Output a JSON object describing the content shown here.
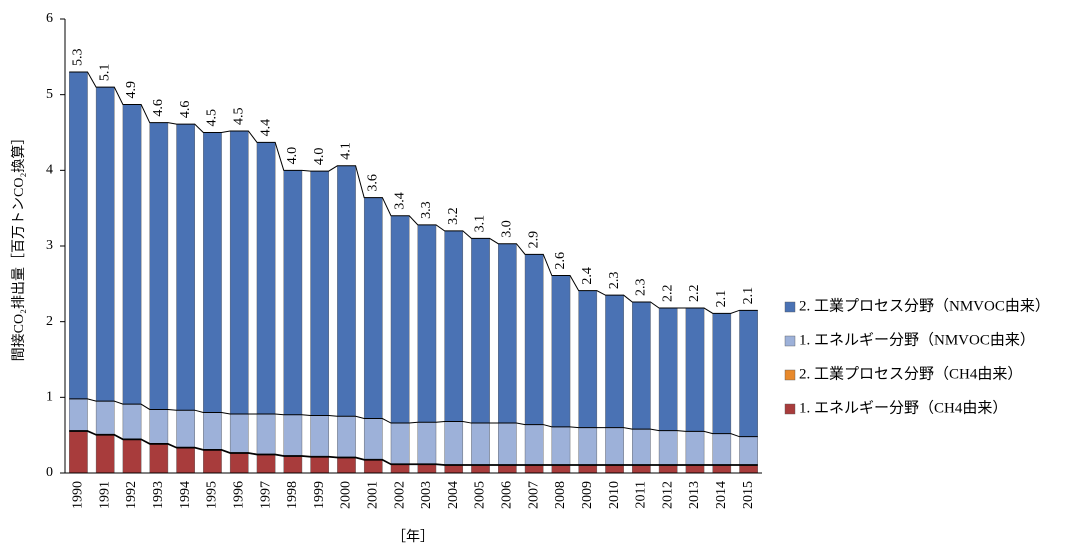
{
  "chart_data": {
    "type": "stacked-bar",
    "ylabel": "間接CO₂排出量［百万トンCO₂換算］",
    "xlabel": "［年］",
    "categories": [
      "1990",
      "1991",
      "1992",
      "1993",
      "1994",
      "1995",
      "1996",
      "1997",
      "1998",
      "1999",
      "2000",
      "2001",
      "2002",
      "2003",
      "2004",
      "2005",
      "2006",
      "2007",
      "2008",
      "2009",
      "2010",
      "2011",
      "2012",
      "2013",
      "2014",
      "2015"
    ],
    "series": [
      {
        "name": "1. エネルギー分野（CH4由来）",
        "color": "#a83c3c",
        "values": [
          0.55,
          0.5,
          0.44,
          0.38,
          0.33,
          0.3,
          0.26,
          0.24,
          0.22,
          0.21,
          0.2,
          0.17,
          0.11,
          0.11,
          0.1,
          0.1,
          0.1,
          0.1,
          0.1,
          0.1,
          0.1,
          0.1,
          0.1,
          0.1,
          0.1,
          0.1
        ]
      },
      {
        "name": "2. 工業プロセス分野（CH4由来）",
        "color": "#e8892b",
        "values": [
          0.01,
          0.01,
          0.01,
          0.01,
          0.01,
          0.01,
          0.01,
          0.01,
          0.01,
          0.01,
          0.01,
          0.01,
          0.01,
          0.01,
          0.01,
          0.01,
          0.01,
          0.01,
          0.01,
          0.01,
          0.01,
          0.01,
          0.01,
          0.01,
          0.01,
          0.01
        ]
      },
      {
        "name": "1. エネルギー分野（NMVOC由来）",
        "color": "#9db1d9",
        "values": [
          0.42,
          0.44,
          0.46,
          0.45,
          0.49,
          0.49,
          0.51,
          0.53,
          0.54,
          0.54,
          0.54,
          0.54,
          0.54,
          0.55,
          0.57,
          0.55,
          0.55,
          0.53,
          0.5,
          0.49,
          0.49,
          0.47,
          0.45,
          0.44,
          0.41,
          0.37
        ]
      },
      {
        "name": "2. 工業プロセス分野（NMVOC由来）",
        "color": "#4a72b4",
        "values": [
          4.32,
          4.15,
          3.96,
          3.79,
          3.78,
          3.7,
          3.74,
          3.59,
          3.23,
          3.23,
          3.31,
          2.92,
          2.74,
          2.61,
          2.52,
          2.44,
          2.37,
          2.25,
          2.0,
          1.81,
          1.75,
          1.68,
          1.62,
          1.63,
          1.59,
          1.67
        ]
      }
    ],
    "totals": [
      5.3,
      5.1,
      4.9,
      4.6,
      4.6,
      4.5,
      4.5,
      4.4,
      4.0,
      4.0,
      4.1,
      3.6,
      3.4,
      3.3,
      3.2,
      3.1,
      3.0,
      2.9,
      2.6,
      2.4,
      2.3,
      2.3,
      2.2,
      2.2,
      2.1,
      2.1
    ],
    "total_labels": [
      "5.3",
      "5.1",
      "4.9",
      "4.6",
      "4.6",
      "4.5",
      "4.5",
      "4.4",
      "4.0",
      "4.0",
      "4.1",
      "3.6",
      "3.4",
      "3.3",
      "3.2",
      "3.1",
      "3.0",
      "2.9",
      "2.6",
      "2.4",
      "2.3",
      "2.3",
      "2.2",
      "2.2",
      "2.1",
      "2.1"
    ],
    "ylim": [
      0,
      6
    ],
    "yticks": [
      0,
      1,
      2,
      3,
      4,
      5,
      6
    ],
    "legend": "right"
  }
}
